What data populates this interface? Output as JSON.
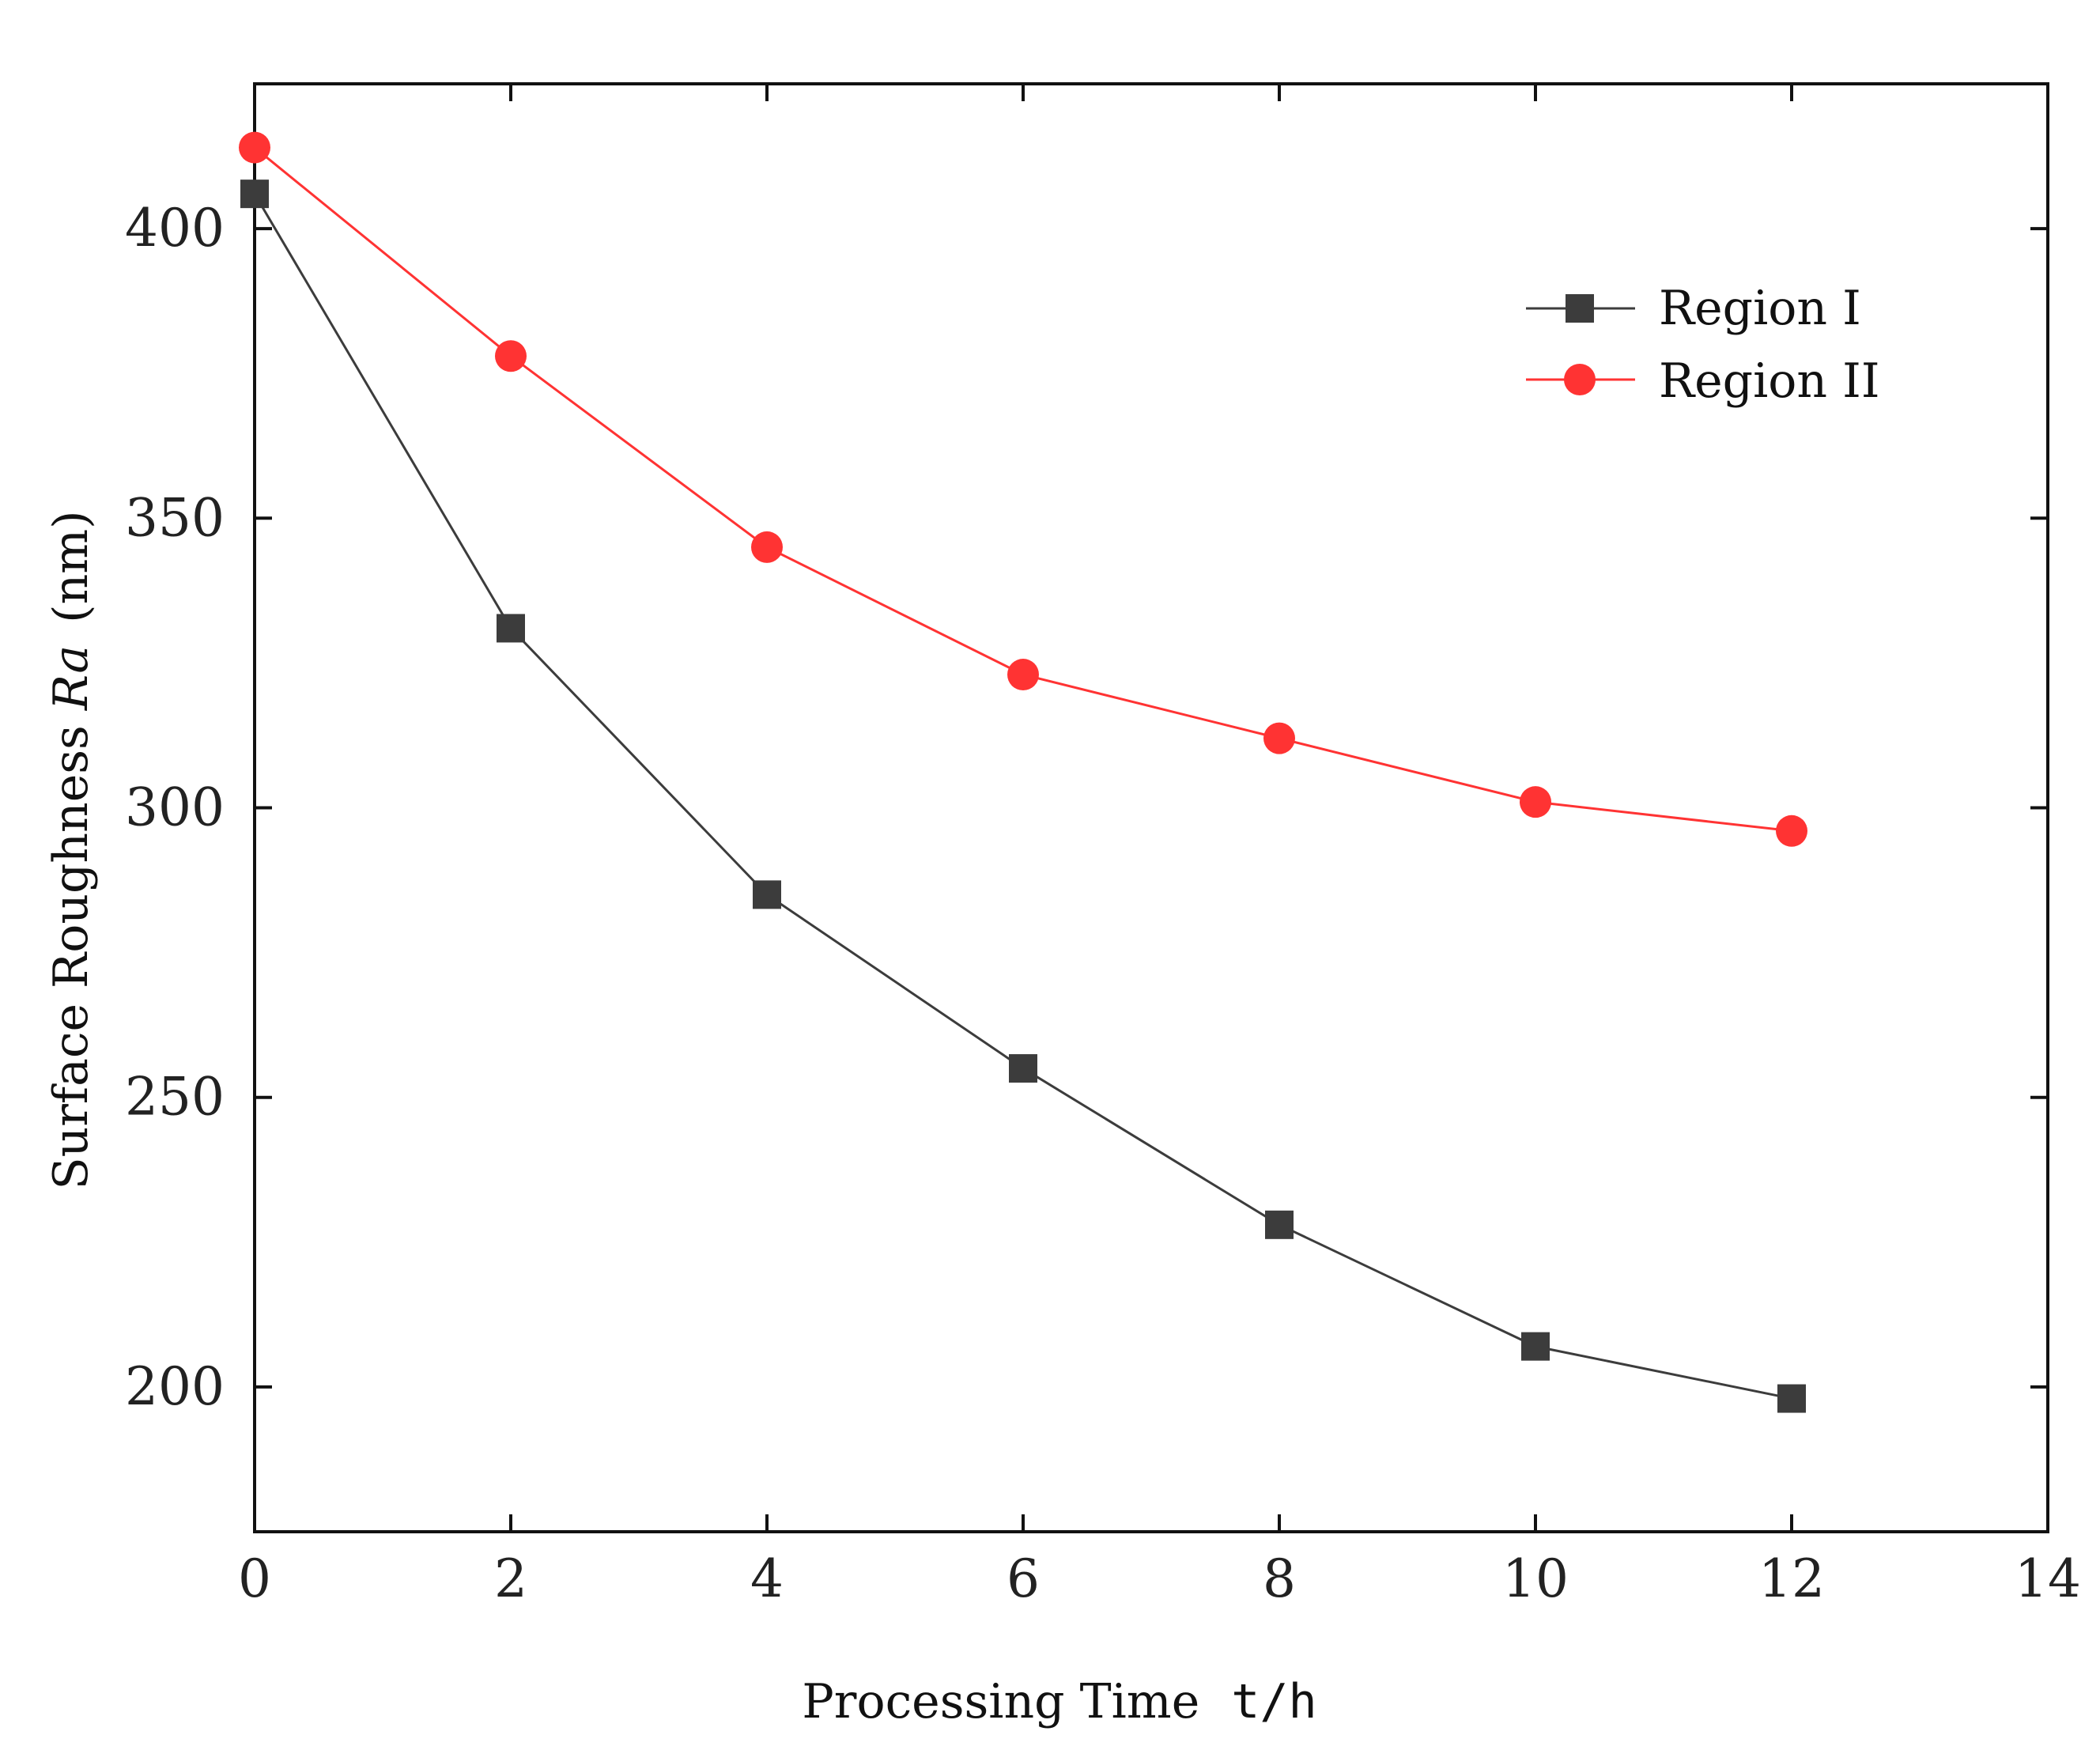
{
  "chart_data": {
    "type": "line",
    "title": "",
    "xlabel": "Processing Time",
    "xlabel_unit": "t/h",
    "ylabel_prefix": "Surface Roughness ",
    "ylabel_symbol": "Ra",
    "ylabel_unit": "(nm)",
    "xlim": [
      0,
      14
    ],
    "ylim": [
      175,
      425
    ],
    "xticks": [
      0,
      2,
      4,
      6,
      8,
      10,
      12,
      14
    ],
    "yticks": [
      200,
      250,
      300,
      350,
      400
    ],
    "grid": false,
    "legend_position": "top-right",
    "x": [
      0,
      2,
      4,
      6,
      8,
      10,
      12
    ],
    "series": [
      {
        "name": "Region I",
        "marker": "square",
        "color": "#3c3c3c",
        "values": [
          406,
          331,
          285,
          255,
          228,
          207,
          198
        ]
      },
      {
        "name": "Region II",
        "marker": "circle",
        "color": "#ff3333",
        "values": [
          414,
          378,
          345,
          323,
          312,
          301,
          296
        ]
      }
    ]
  }
}
